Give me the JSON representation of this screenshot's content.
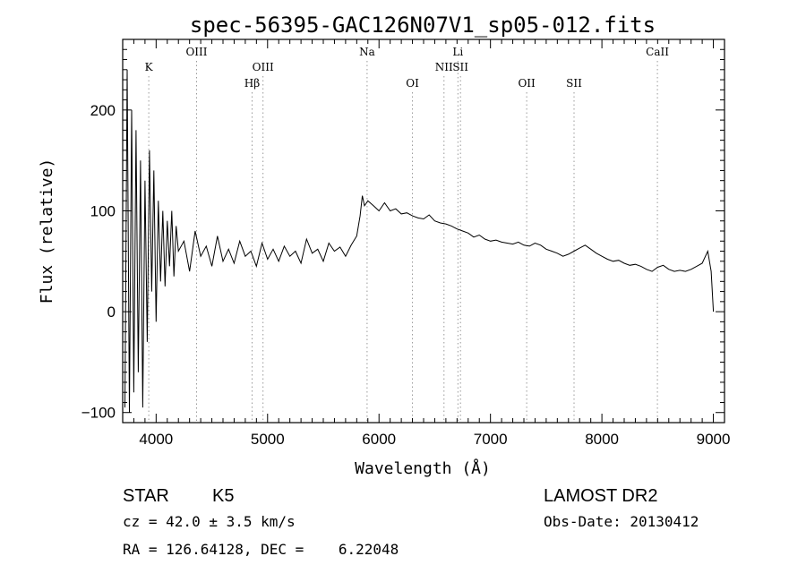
{
  "chart_data": {
    "type": "line",
    "title": "spec-56395-GAC126N07V1_sp05-012.fits",
    "xlabel": "Wavelength (Å)",
    "ylabel": "Flux (relative)",
    "xlim": [
      3700,
      9100
    ],
    "ylim": [
      -110,
      270
    ],
    "x_ticks": [
      4000,
      5000,
      6000,
      7000,
      8000,
      9000
    ],
    "y_ticks": [
      -100,
      0,
      100,
      200
    ],
    "grid": false,
    "spectral_lines": [
      {
        "label": "K",
        "wavelength": 3934,
        "row": 2
      },
      {
        "label": "OIII",
        "wavelength": 4363,
        "row": 1
      },
      {
        "label": "Hβ",
        "wavelength": 4861,
        "row": 3
      },
      {
        "label": "OIII",
        "wavelength": 4959,
        "row": 2
      },
      {
        "label": "Na",
        "wavelength": 5893,
        "row": 1
      },
      {
        "label": "OI",
        "wavelength": 6300,
        "row": 3
      },
      {
        "label": "NII",
        "wavelength": 6583,
        "row": 2
      },
      {
        "label": "Li",
        "wavelength": 6708,
        "row": 1
      },
      {
        "label": "SII",
        "wavelength": 6731,
        "row": 2
      },
      {
        "label": "OII",
        "wavelength": 7325,
        "row": 3
      },
      {
        "label": "SII",
        "wavelength": 7750,
        "row": 3
      },
      {
        "label": "CaII",
        "wavelength": 8498,
        "row": 1
      }
    ],
    "series": [
      {
        "x": [
          3720,
          3740,
          3760,
          3780,
          3800,
          3820,
          3840,
          3860,
          3880,
          3900,
          3920,
          3940,
          3960,
          3980,
          4000,
          4020,
          4040,
          4060,
          4080,
          4100,
          4120,
          4140,
          4160,
          4180,
          4200,
          4250,
          4300,
          4350,
          4400,
          4450,
          4500,
          4550,
          4600,
          4650,
          4700,
          4750,
          4800,
          4850,
          4900,
          4950,
          5000,
          5050,
          5100,
          5150,
          5200,
          5250,
          5300,
          5350,
          5400,
          5450,
          5500,
          5550,
          5600,
          5650,
          5700,
          5750,
          5800,
          5830,
          5850,
          5870,
          5900,
          5950,
          6000,
          6050,
          6100,
          6150,
          6200,
          6250,
          6300,
          6350,
          6400,
          6450,
          6500,
          6550,
          6600,
          6650,
          6700,
          6750,
          6800,
          6850,
          6900,
          6950,
          7000,
          7050,
          7100,
          7150,
          7200,
          7250,
          7300,
          7350,
          7400,
          7450,
          7500,
          7550,
          7600,
          7650,
          7700,
          7750,
          7800,
          7850,
          7900,
          7950,
          8000,
          8050,
          8100,
          8150,
          8200,
          8250,
          8300,
          8350,
          8400,
          8450,
          8500,
          8550,
          8600,
          8650,
          8700,
          8750,
          8800,
          8850,
          8900,
          8950,
          8980,
          9000
        ],
        "y": [
          -95,
          240,
          -100,
          200,
          -80,
          180,
          -60,
          150,
          -95,
          130,
          -30,
          160,
          20,
          140,
          -10,
          110,
          30,
          100,
          25,
          90,
          45,
          100,
          35,
          85,
          60,
          70,
          40,
          80,
          55,
          65,
          45,
          75,
          50,
          62,
          48,
          70,
          55,
          60,
          45,
          68,
          52,
          62,
          50,
          65,
          55,
          60,
          48,
          72,
          58,
          62,
          50,
          68,
          60,
          64,
          55,
          66,
          75,
          95,
          115,
          105,
          110,
          105,
          100,
          108,
          100,
          102,
          97,
          98,
          95,
          93,
          92,
          96,
          90,
          88,
          87,
          85,
          82,
          80,
          78,
          74,
          76,
          72,
          70,
          71,
          69,
          68,
          67,
          69,
          66,
          65,
          68,
          66,
          62,
          60,
          58,
          55,
          57,
          60,
          63,
          66,
          62,
          58,
          55,
          52,
          50,
          51,
          48,
          46,
          47,
          45,
          42,
          40,
          44,
          46,
          42,
          40,
          41,
          40,
          42,
          45,
          48,
          60,
          40,
          0
        ]
      }
    ],
    "annotations": {
      "object": "STAR",
      "subclass": "K5",
      "survey": "LAMOST DR2",
      "cz": "cz = 42.0 ± 3.5 km/s",
      "obs_date": "Obs-Date: 20130412",
      "coords": "RA = 126.64128, DEC =    6.22048"
    }
  }
}
